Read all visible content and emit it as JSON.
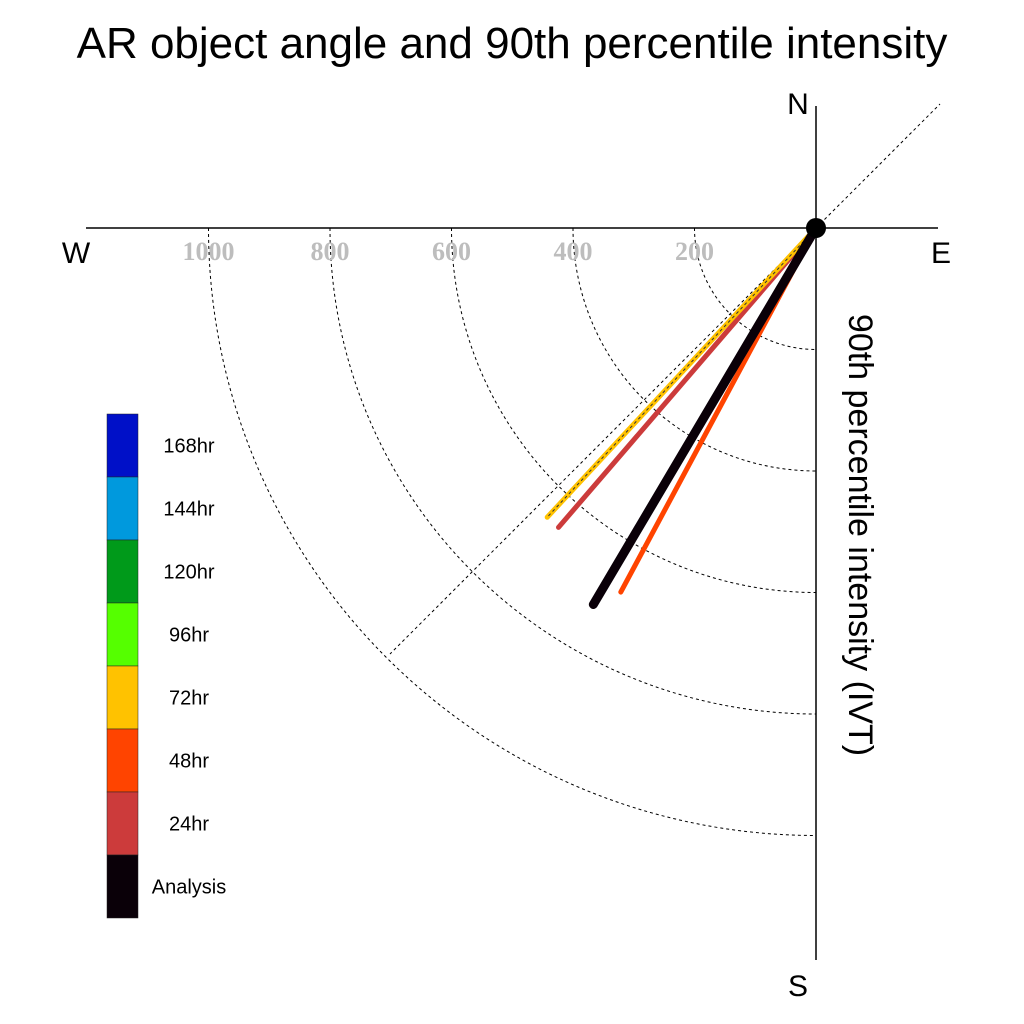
{
  "chart_data": {
    "type": "polar-line",
    "title": "AR object angle and 90th percentile intensity",
    "radial_label": "90th percentile intensity (IVT)",
    "compass": {
      "north": "N",
      "south": "S",
      "east": "E",
      "west": "W"
    },
    "radial_ticks": [
      200,
      400,
      600,
      800,
      1000
    ],
    "radial_range": [
      0,
      1200
    ],
    "grid": true,
    "legend_position": "left",
    "legend": [
      {
        "label": "168hr",
        "color": "#0010c8"
      },
      {
        "label": "144hr",
        "color": "#0099dd"
      },
      {
        "label": "120hr",
        "color": "#009a1a"
      },
      {
        "label": "96hr",
        "color": "#55ff00"
      },
      {
        "label": "72hr",
        "color": "#ffc200"
      },
      {
        "label": "48hr",
        "color": "#ff4400"
      },
      {
        "label": "24hr",
        "color": "#cc3b3b"
      },
      {
        "label": "Analysis",
        "color": "#0a0008"
      }
    ],
    "series": [
      {
        "name": "24hr",
        "angle_deg": 220.7,
        "intensity": 650,
        "color": "#cc3b3b"
      },
      {
        "name": "72hr",
        "angle_deg": 222.9,
        "intensity": 650,
        "color": "#ffc200"
      },
      {
        "name": "48hr",
        "angle_deg": 208.2,
        "intensity": 680,
        "color": "#ff4400"
      },
      {
        "name": "Analysis",
        "angle_deg": 210.6,
        "intensity": 720,
        "color": "#0a0008"
      }
    ]
  }
}
